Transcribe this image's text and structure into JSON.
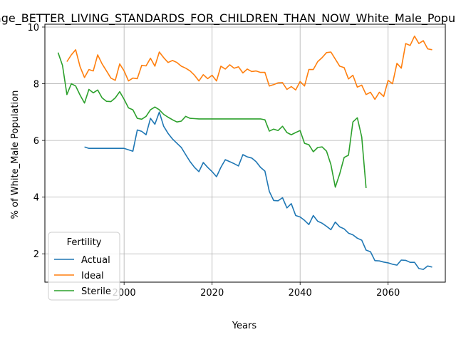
{
  "chart_data": {
    "type": "line",
    "title": "Average_BETTER_LIVING_STANDARDS_FOR_CHILDREN_THAN_NOW_White_Male_Population",
    "xlabel": "Years",
    "ylabel": "% of White_Male Population",
    "xlim": [
      1982,
      2073
    ],
    "ylim": [
      1.0,
      10.1
    ],
    "xticks": [
      2000,
      2020,
      2040,
      2060
    ],
    "yticks": [
      2,
      4,
      6,
      8,
      10
    ],
    "grid": true,
    "legend": {
      "title": "Fertility",
      "placement": "lower-left"
    },
    "series": [
      {
        "name": "Actual",
        "color": "#1f77b4",
        "x": [
          1991,
          1992,
          1993,
          1994,
          1995,
          1996,
          1997,
          1998,
          1999,
          2000,
          2001,
          2002,
          2003,
          2004,
          2005,
          2006,
          2007,
          2008,
          2009,
          2010,
          2011,
          2012,
          2013,
          2014,
          2015,
          2016,
          2017,
          2018,
          2019,
          2020,
          2021,
          2022,
          2023,
          2024,
          2025,
          2026,
          2027,
          2028,
          2029,
          2030,
          2031,
          2032,
          2033,
          2034,
          2035,
          2036,
          2037,
          2038,
          2039,
          2040,
          2041,
          2042,
          2043,
          2044,
          2045,
          2046,
          2047,
          2048,
          2049,
          2050,
          2051,
          2052,
          2053,
          2054,
          2055,
          2056,
          2057,
          2058,
          2059,
          2060,
          2061,
          2062,
          2063,
          2064,
          2065,
          2066,
          2067,
          2068,
          2069,
          2070
        ],
        "values": [
          5.77,
          5.72,
          5.72,
          5.72,
          5.72,
          5.72,
          5.72,
          5.72,
          5.72,
          5.72,
          5.67,
          5.62,
          6.37,
          6.32,
          6.2,
          6.78,
          6.57,
          7.0,
          6.5,
          6.25,
          6.05,
          5.9,
          5.75,
          5.5,
          5.25,
          5.05,
          4.9,
          5.22,
          5.05,
          4.9,
          4.72,
          5.05,
          5.32,
          5.25,
          5.18,
          5.1,
          5.5,
          5.42,
          5.38,
          5.25,
          5.05,
          4.92,
          4.2,
          3.88,
          3.87,
          3.98,
          3.62,
          3.77,
          3.35,
          3.3,
          3.18,
          3.03,
          3.35,
          3.15,
          3.08,
          2.97,
          2.85,
          3.12,
          2.95,
          2.88,
          2.73,
          2.67,
          2.55,
          2.48,
          2.13,
          2.07,
          1.76,
          1.75,
          1.71,
          1.68,
          1.63,
          1.6,
          1.78,
          1.77,
          1.7,
          1.7,
          1.48,
          1.45,
          1.57,
          1.53
        ]
      },
      {
        "name": "Ideal",
        "color": "#ff7f0e",
        "x": [
          1987,
          1988,
          1989,
          1990,
          1991,
          1992,
          1993,
          1994,
          1995,
          1996,
          1997,
          1998,
          1999,
          2000,
          2001,
          2002,
          2003,
          2004,
          2005,
          2006,
          2007,
          2008,
          2009,
          2010,
          2011,
          2012,
          2013,
          2014,
          2015,
          2016,
          2017,
          2018,
          2019,
          2020,
          2021,
          2022,
          2023,
          2024,
          2025,
          2026,
          2027,
          2028,
          2029,
          2030,
          2031,
          2032,
          2033,
          2034,
          2035,
          2036,
          2037,
          2038,
          2039,
          2040,
          2041,
          2042,
          2043,
          2044,
          2045,
          2046,
          2047,
          2048,
          2049,
          2050,
          2051,
          2052,
          2053,
          2054,
          2055,
          2056,
          2057,
          2058,
          2059,
          2060,
          2061,
          2062,
          2063,
          2064,
          2065,
          2066,
          2067,
          2068,
          2069,
          2070
        ],
        "values": [
          8.78,
          9.02,
          9.2,
          8.6,
          8.22,
          8.5,
          8.45,
          9.02,
          8.7,
          8.45,
          8.2,
          8.12,
          8.7,
          8.45,
          8.1,
          8.2,
          8.18,
          8.65,
          8.63,
          8.9,
          8.62,
          9.12,
          8.92,
          8.75,
          8.82,
          8.75,
          8.62,
          8.55,
          8.45,
          8.3,
          8.1,
          8.32,
          8.18,
          8.3,
          8.1,
          8.62,
          8.52,
          8.67,
          8.55,
          8.6,
          8.38,
          8.52,
          8.43,
          8.45,
          8.4,
          8.4,
          7.92,
          7.97,
          8.03,
          8.04,
          7.8,
          7.9,
          7.78,
          8.08,
          7.92,
          8.5,
          8.5,
          8.78,
          8.92,
          9.1,
          9.12,
          8.87,
          8.62,
          8.57,
          8.17,
          8.3,
          7.88,
          7.95,
          7.62,
          7.7,
          7.45,
          7.7,
          7.55,
          8.12,
          8.0,
          8.72,
          8.55,
          9.42,
          9.35,
          9.68,
          9.42,
          9.52,
          9.23,
          9.2
        ]
      },
      {
        "name": "Sterile",
        "color": "#2ca02c",
        "x": [
          1985,
          1986,
          1987,
          1988,
          1989,
          1990,
          1991,
          1992,
          1993,
          1994,
          1995,
          1996,
          1997,
          1998,
          1999,
          2000,
          2001,
          2002,
          2003,
          2004,
          2005,
          2006,
          2007,
          2008,
          2009,
          2010,
          2011,
          2012,
          2013,
          2014,
          2015,
          2016,
          2017,
          2018,
          2019,
          2020,
          2021,
          2022,
          2023,
          2024,
          2025,
          2026,
          2027,
          2028,
          2029,
          2030,
          2031,
          2032,
          2033,
          2034,
          2035,
          2036,
          2037,
          2038,
          2039,
          2040,
          2041,
          2042,
          2043,
          2044,
          2045,
          2046,
          2047,
          2048,
          2049,
          2050,
          2051,
          2052,
          2053,
          2054,
          2055
        ],
        "values": [
          9.1,
          8.65,
          7.62,
          8.0,
          7.92,
          7.6,
          7.32,
          7.8,
          7.68,
          7.78,
          7.5,
          7.38,
          7.37,
          7.5,
          7.72,
          7.45,
          7.15,
          7.08,
          6.78,
          6.75,
          6.85,
          7.08,
          7.18,
          7.08,
          6.92,
          6.82,
          6.73,
          6.65,
          6.68,
          6.85,
          6.78,
          6.77,
          6.76,
          6.76,
          6.76,
          6.76,
          6.76,
          6.76,
          6.76,
          6.76,
          6.76,
          6.76,
          6.76,
          6.76,
          6.76,
          6.76,
          6.76,
          6.73,
          6.33,
          6.4,
          6.35,
          6.5,
          6.28,
          6.2,
          6.28,
          6.35,
          5.9,
          5.85,
          5.6,
          5.75,
          5.77,
          5.62,
          5.15,
          4.35,
          4.82,
          5.4,
          5.48,
          6.65,
          6.8,
          6.12,
          4.32
        ]
      }
    ]
  }
}
